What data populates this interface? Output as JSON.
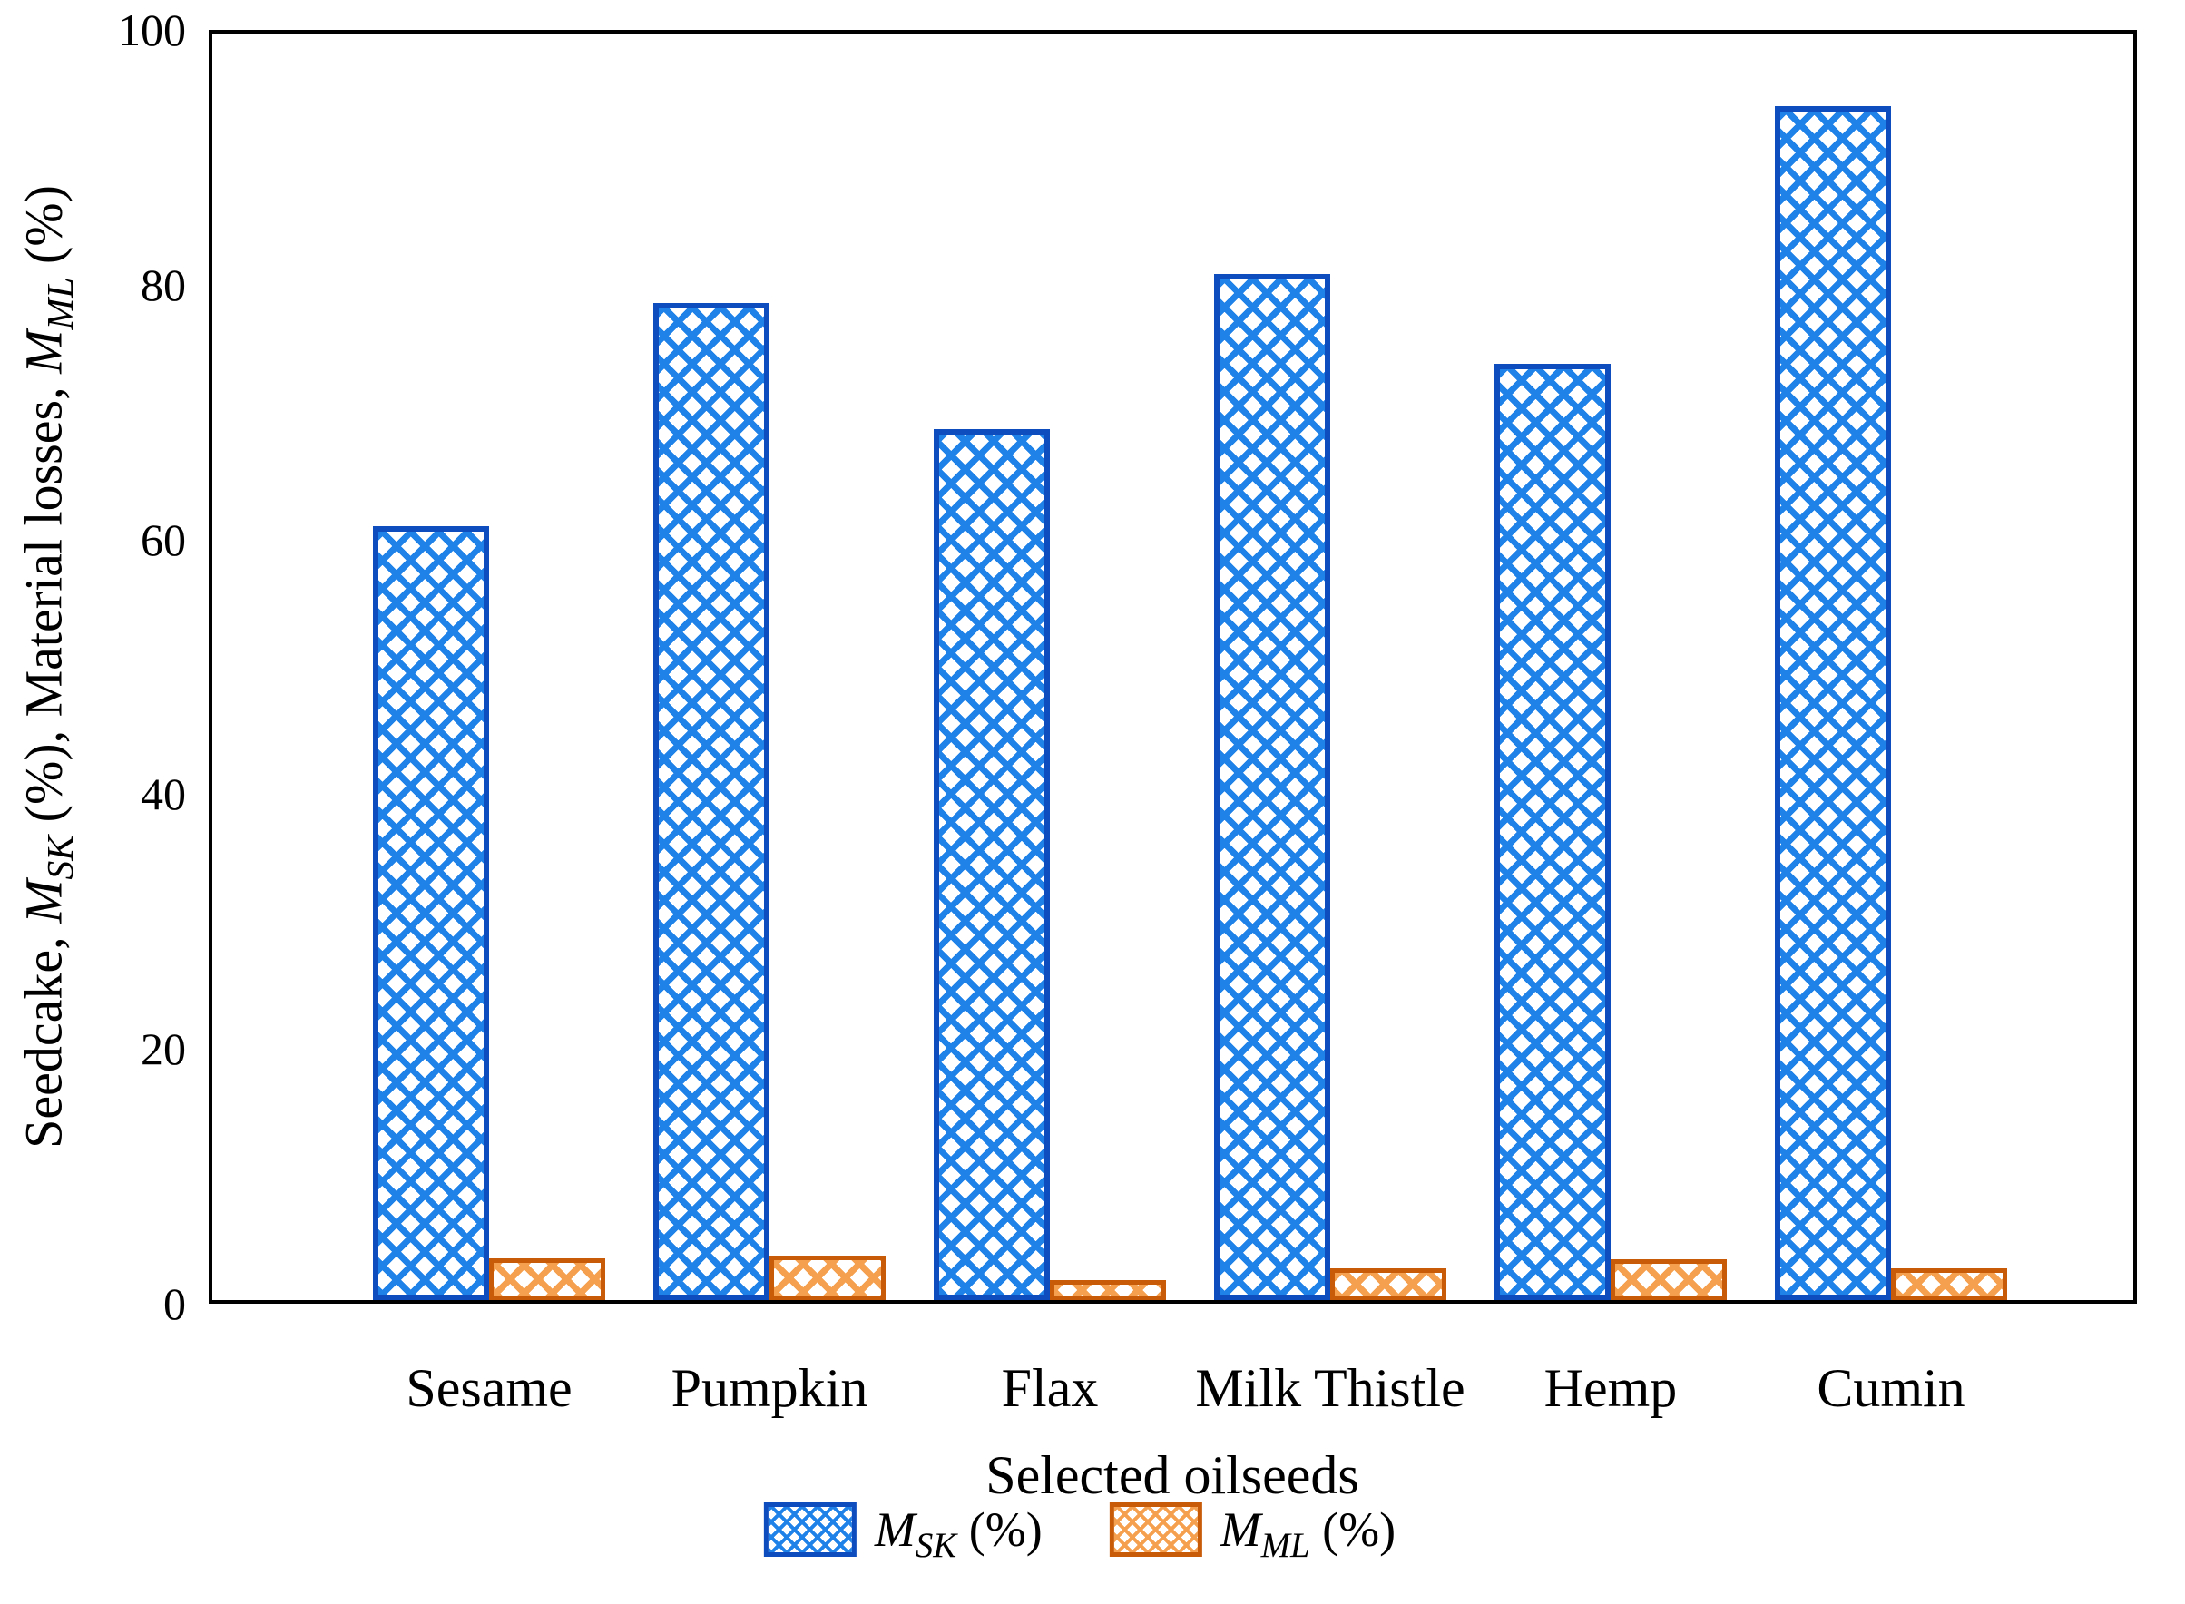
{
  "chart_data": {
    "type": "bar",
    "title": "",
    "xlabel": "Selected oilseeds",
    "ylabel": "Seedcake, M_SK (%), Material losses, M_ML (%)",
    "categories": [
      "Sesame",
      "Pumpkin",
      "Flax",
      "Milk Thistle",
      "Hemp",
      "Cumin"
    ],
    "series": [
      {
        "name": "M_SK (%)",
        "key": "msk",
        "values": [
          61.1,
          78.7,
          68.8,
          81.0,
          73.9,
          94.3
        ]
      },
      {
        "name": "M_ML (%)",
        "key": "mml",
        "values": [
          3.3,
          3.5,
          1.6,
          2.5,
          3.2,
          2.5
        ]
      }
    ],
    "ylim": [
      0,
      100
    ],
    "yticks": [
      0,
      20,
      40,
      60,
      80,
      100
    ],
    "grid": false,
    "legend_position": "bottom",
    "hatch": "diagonal-crosshatch"
  },
  "colors": {
    "msk_hatch": "#1f82e8",
    "msk_edge": "#0e4dbd",
    "mml_hatch": "#f5a04e",
    "mml_edge": "#c75b08",
    "axis": "#000000",
    "background": "#ffffff"
  },
  "labels": {
    "xlabel": "Selected oilseeds",
    "ylabel_parts": {
      "prefix": "Seedcake, ",
      "m1": "M",
      "sub1": "SK",
      "middle": " (%), Material losses, ",
      "m2": "M",
      "sub2": "ML",
      "suffix": " (%)"
    },
    "legend": {
      "msk": {
        "m": "M",
        "sub": "SK",
        "rest": " (%)"
      },
      "mml": {
        "m": "M",
        "sub": "ML",
        "rest": " (%)"
      }
    }
  }
}
